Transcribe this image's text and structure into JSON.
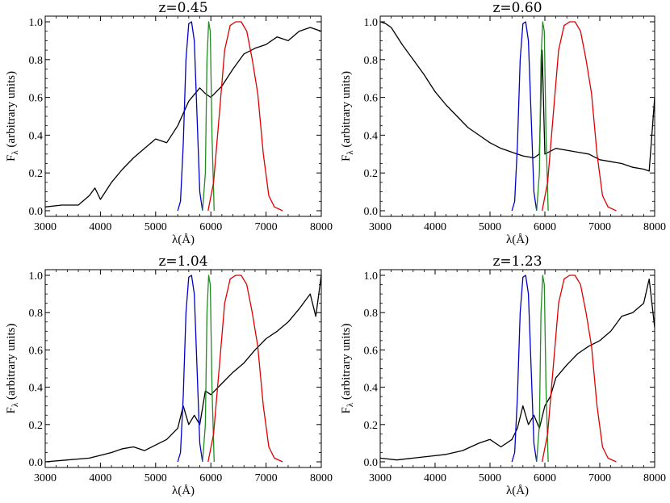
{
  "chart_data": [
    {
      "type": "line",
      "title": "z=0.45",
      "xlabel": "λ(Å)",
      "ylabel": "F_λ (arbitrary units)",
      "xlim": [
        3000,
        8000
      ],
      "ylim": [
        0,
        1
      ],
      "xticks": [
        3000,
        4000,
        5000,
        6000,
        7000,
        8000
      ],
      "yticks": [
        0.0,
        0.2,
        0.4,
        0.6,
        0.8,
        1.0
      ],
      "series": [
        {
          "color": "#000000",
          "x": [
            3000,
            3300,
            3600,
            3800,
            3900,
            4000,
            4200,
            4400,
            4600,
            4800,
            5000,
            5200,
            5400,
            5600,
            5800,
            5900,
            6000,
            6200,
            6400,
            6600,
            6800,
            7000,
            7200,
            7400,
            7600,
            7800,
            8000
          ],
          "y": [
            0.02,
            0.03,
            0.03,
            0.08,
            0.12,
            0.06,
            0.15,
            0.22,
            0.28,
            0.33,
            0.38,
            0.36,
            0.45,
            0.58,
            0.65,
            0.62,
            0.6,
            0.66,
            0.75,
            0.83,
            0.86,
            0.88,
            0.92,
            0.9,
            0.95,
            0.97,
            0.95
          ]
        },
        {
          "color": "#0000cc",
          "x": [
            5400,
            5450,
            5500,
            5550,
            5600,
            5650,
            5700,
            5750,
            5800,
            5850
          ],
          "y": [
            0,
            0.05,
            0.35,
            0.8,
            0.99,
            1.0,
            0.9,
            0.5,
            0.1,
            0
          ]
        },
        {
          "color": "#228b22",
          "x": [
            5850,
            5900,
            5930,
            5960,
            5990,
            6020,
            6060
          ],
          "y": [
            0,
            0.2,
            0.8,
            1.0,
            0.95,
            0.4,
            0
          ]
        },
        {
          "color": "#dd0000",
          "x": [
            5950,
            6050,
            6150,
            6250,
            6350,
            6450,
            6550,
            6650,
            6750,
            6850,
            6950,
            7050,
            7150,
            7300
          ],
          "y": [
            0,
            0.15,
            0.5,
            0.85,
            0.98,
            1.0,
            1.0,
            0.95,
            0.8,
            0.62,
            0.3,
            0.08,
            0.02,
            0
          ]
        }
      ]
    },
    {
      "type": "line",
      "title": "z=0.60",
      "xlabel": "λ(Å)",
      "ylabel": "F_λ (arbitrary units)",
      "xlim": [
        3000,
        8000
      ],
      "ylim": [
        0,
        1
      ],
      "xticks": [
        3000,
        4000,
        5000,
        6000,
        7000,
        8000
      ],
      "yticks": [
        0.0,
        0.2,
        0.4,
        0.6,
        0.8,
        1.0
      ],
      "series": [
        {
          "color": "#000000",
          "x": [
            3000,
            3100,
            3200,
            3400,
            3600,
            3800,
            4000,
            4200,
            4400,
            4600,
            4800,
            5000,
            5200,
            5400,
            5600,
            5800,
            5900,
            5950,
            6000,
            6200,
            6400,
            6600,
            6800,
            7000,
            7200,
            7400,
            7600,
            7800,
            7900,
            8000
          ],
          "y": [
            1.0,
            0.99,
            0.97,
            0.88,
            0.8,
            0.72,
            0.63,
            0.56,
            0.5,
            0.44,
            0.4,
            0.36,
            0.33,
            0.31,
            0.29,
            0.28,
            0.3,
            0.85,
            0.3,
            0.33,
            0.32,
            0.31,
            0.3,
            0.27,
            0.26,
            0.25,
            0.23,
            0.22,
            0.21,
            0.6
          ]
        },
        {
          "color": "#0000cc",
          "x": [
            5400,
            5450,
            5500,
            5550,
            5600,
            5650,
            5700,
            5750,
            5800,
            5850
          ],
          "y": [
            0,
            0.05,
            0.35,
            0.8,
            0.99,
            1.0,
            0.9,
            0.5,
            0.1,
            0
          ]
        },
        {
          "color": "#228b22",
          "x": [
            5850,
            5900,
            5930,
            5960,
            5990,
            6020,
            6060
          ],
          "y": [
            0,
            0.2,
            0.8,
            1.0,
            0.95,
            0.4,
            0
          ]
        },
        {
          "color": "#dd0000",
          "x": [
            5950,
            6050,
            6150,
            6250,
            6350,
            6450,
            6550,
            6650,
            6750,
            6850,
            6950,
            7050,
            7150,
            7300
          ],
          "y": [
            0,
            0.15,
            0.5,
            0.85,
            0.98,
            1.0,
            1.0,
            0.95,
            0.8,
            0.62,
            0.3,
            0.08,
            0.02,
            0
          ]
        }
      ]
    },
    {
      "type": "line",
      "title": "z=1.04",
      "xlabel": "λ(Å)",
      "ylabel": "F_λ (arbitrary units)",
      "xlim": [
        3000,
        8000
      ],
      "ylim": [
        0,
        1
      ],
      "xticks": [
        3000,
        4000,
        5000,
        6000,
        7000,
        8000
      ],
      "yticks": [
        0.0,
        0.2,
        0.4,
        0.6,
        0.8,
        1.0
      ],
      "series": [
        {
          "color": "#000000",
          "x": [
            3000,
            3400,
            3800,
            4200,
            4400,
            4600,
            4800,
            5000,
            5200,
            5400,
            5500,
            5600,
            5700,
            5800,
            5900,
            6000,
            6200,
            6400,
            6600,
            6800,
            7000,
            7200,
            7400,
            7600,
            7800,
            7900,
            8000
          ],
          "y": [
            0.0,
            0.01,
            0.02,
            0.05,
            0.07,
            0.08,
            0.06,
            0.09,
            0.12,
            0.18,
            0.3,
            0.2,
            0.25,
            0.2,
            0.38,
            0.36,
            0.42,
            0.48,
            0.53,
            0.6,
            0.66,
            0.7,
            0.75,
            0.82,
            0.9,
            0.78,
            1.0
          ]
        },
        {
          "color": "#0000cc",
          "x": [
            5400,
            5450,
            5500,
            5550,
            5600,
            5650,
            5700,
            5750,
            5800,
            5850
          ],
          "y": [
            0,
            0.05,
            0.35,
            0.8,
            0.99,
            1.0,
            0.9,
            0.5,
            0.1,
            0
          ]
        },
        {
          "color": "#228b22",
          "x": [
            5850,
            5900,
            5930,
            5960,
            5990,
            6020,
            6060
          ],
          "y": [
            0,
            0.2,
            0.8,
            1.0,
            0.95,
            0.4,
            0
          ]
        },
        {
          "color": "#dd0000",
          "x": [
            5950,
            6050,
            6150,
            6250,
            6350,
            6450,
            6550,
            6650,
            6750,
            6850,
            6950,
            7050,
            7150,
            7300
          ],
          "y": [
            0,
            0.15,
            0.5,
            0.85,
            0.98,
            1.0,
            1.0,
            0.95,
            0.8,
            0.62,
            0.3,
            0.08,
            0.02,
            0
          ]
        }
      ]
    },
    {
      "type": "line",
      "title": "z=1.23",
      "xlabel": "λ(Å)",
      "ylabel": "F_λ (arbitrary units)",
      "xlim": [
        3000,
        8000
      ],
      "ylim": [
        0,
        1
      ],
      "xticks": [
        3000,
        4000,
        5000,
        6000,
        7000,
        8000
      ],
      "yticks": [
        0.0,
        0.2,
        0.4,
        0.6,
        0.8,
        1.0
      ],
      "series": [
        {
          "color": "#000000",
          "x": [
            3000,
            3300,
            3600,
            3900,
            4200,
            4500,
            4800,
            5000,
            5200,
            5400,
            5500,
            5600,
            5700,
            5800,
            5900,
            6000,
            6100,
            6200,
            6400,
            6600,
            6800,
            7000,
            7200,
            7400,
            7600,
            7800,
            7900,
            8000
          ],
          "y": [
            0.02,
            0.01,
            0.02,
            0.03,
            0.04,
            0.06,
            0.1,
            0.12,
            0.08,
            0.12,
            0.18,
            0.3,
            0.2,
            0.25,
            0.18,
            0.3,
            0.35,
            0.45,
            0.52,
            0.58,
            0.62,
            0.65,
            0.7,
            0.78,
            0.8,
            0.85,
            0.98,
            0.72
          ]
        },
        {
          "color": "#0000cc",
          "x": [
            5400,
            5450,
            5500,
            5550,
            5600,
            5650,
            5700,
            5750,
            5800,
            5850
          ],
          "y": [
            0,
            0.05,
            0.35,
            0.8,
            0.99,
            1.0,
            0.9,
            0.5,
            0.1,
            0
          ]
        },
        {
          "color": "#228b22",
          "x": [
            5850,
            5900,
            5930,
            5960,
            5990,
            6020,
            6060
          ],
          "y": [
            0,
            0.2,
            0.8,
            1.0,
            0.95,
            0.4,
            0
          ]
        },
        {
          "color": "#dd0000",
          "x": [
            5950,
            6050,
            6150,
            6250,
            6350,
            6450,
            6550,
            6650,
            6750,
            6850,
            6950,
            7050,
            7150,
            7300
          ],
          "y": [
            0,
            0.15,
            0.5,
            0.85,
            0.98,
            1.0,
            1.0,
            0.95,
            0.8,
            0.62,
            0.3,
            0.08,
            0.02,
            0
          ]
        }
      ]
    }
  ]
}
